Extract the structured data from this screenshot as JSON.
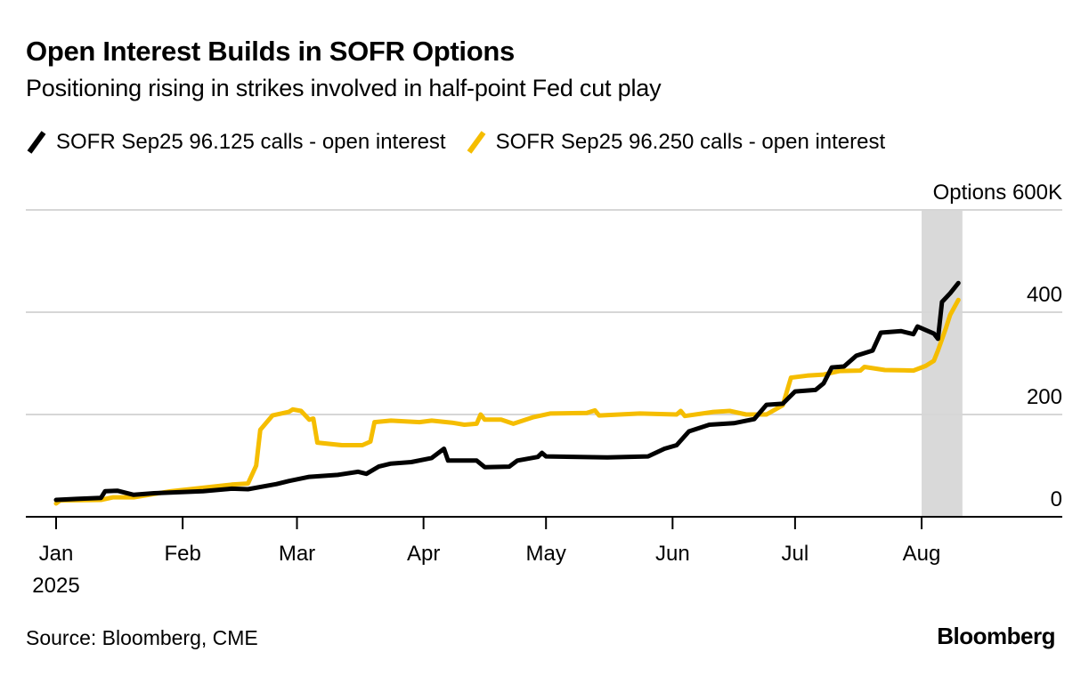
{
  "header": {
    "title": "Open Interest Builds in SOFR Options",
    "subtitle": "Positioning rising in strikes involved in half-point Fed cut play"
  },
  "footer": {
    "source": "Source: Bloomberg, CME",
    "logo": "Bloomberg"
  },
  "chart_data": {
    "type": "line",
    "title": "Open Interest Builds in SOFR Options",
    "subtitle": "Positioning rising in strikes involved in half-point Fed cut play",
    "xlabel": "",
    "ylabel": "Options",
    "y_unit_label": "Options 600K",
    "x_unit": "days since 2025-01-01",
    "xlim": [
      0,
      243
    ],
    "ylim": [
      0,
      600
    ],
    "yticks": [
      0,
      200,
      400,
      600
    ],
    "ytick_labels": [
      "0",
      "200",
      "400",
      "Options 600K"
    ],
    "xticks": [
      {
        "day": 0,
        "label": "Jan",
        "sublabel": "2025"
      },
      {
        "day": 31,
        "label": "Feb",
        "sublabel": ""
      },
      {
        "day": 59,
        "label": "Mar",
        "sublabel": ""
      },
      {
        "day": 90,
        "label": "Apr",
        "sublabel": ""
      },
      {
        "day": 120,
        "label": "May",
        "sublabel": ""
      },
      {
        "day": 151,
        "label": "Jun",
        "sublabel": ""
      },
      {
        "day": 181,
        "label": "Jul",
        "sublabel": ""
      },
      {
        "day": 212,
        "label": "Aug",
        "sublabel": ""
      }
    ],
    "grid": true,
    "y_axis_side": "right",
    "legend_position": "top-left",
    "shaded_region": {
      "start_day": 212,
      "end_day": 222,
      "color": "#d9d9d9"
    },
    "series": [
      {
        "name": "SOFR Sep25 96.125 calls - open interest",
        "color": "#000000",
        "x": [
          0,
          5,
          11,
          12,
          15,
          19,
          24,
          36,
          43,
          47,
          54,
          57,
          62,
          69,
          74,
          76,
          79,
          82,
          87,
          92,
          95,
          96,
          103,
          105,
          111,
          113,
          118,
          119,
          120,
          135,
          145,
          149,
          152,
          155,
          160,
          166,
          171,
          174,
          178,
          181,
          186,
          188,
          190,
          193,
          196,
          200,
          202,
          207,
          210,
          211,
          215,
          216,
          217,
          219,
          221
        ],
        "values": [
          33,
          35,
          37,
          50,
          51,
          43,
          46,
          50,
          55,
          54,
          64,
          70,
          78,
          82,
          88,
          84,
          98,
          104,
          107,
          115,
          133,
          110,
          110,
          97,
          98,
          110,
          117,
          125,
          118,
          116,
          118,
          133,
          140,
          167,
          180,
          183,
          191,
          219,
          221,
          245,
          248,
          261,
          292,
          294,
          315,
          325,
          360,
          363,
          357,
          372,
          358,
          348,
          420,
          437,
          457
        ]
      },
      {
        "name": "SOFR Sep25 96.250 calls - open interest",
        "color": "#f5bd00",
        "x": [
          0,
          1,
          11,
          14,
          19,
          28,
          34,
          43,
          47,
          49,
          50,
          53,
          57,
          58,
          60,
          62,
          63,
          64,
          70,
          75,
          77,
          78,
          82,
          89,
          92,
          97,
          100,
          103,
          104,
          105,
          109,
          112,
          117,
          121,
          130,
          132,
          133,
          143,
          152,
          153,
          154,
          161,
          165,
          169,
          174,
          178,
          180,
          184,
          188,
          192,
          197,
          198,
          203,
          210,
          213,
          215,
          216,
          218,
          219,
          221
        ],
        "values": [
          26,
          32,
          33,
          38,
          38,
          50,
          55,
          63,
          65,
          100,
          170,
          198,
          205,
          210,
          207,
          190,
          192,
          145,
          140,
          140,
          147,
          185,
          188,
          185,
          188,
          184,
          180,
          182,
          200,
          190,
          190,
          182,
          195,
          202,
          203,
          208,
          198,
          202,
          200,
          207,
          197,
          205,
          207,
          200,
          200,
          218,
          272,
          276,
          278,
          285,
          286,
          293,
          287,
          286,
          295,
          305,
          325,
          370,
          395,
          424
        ]
      }
    ]
  }
}
